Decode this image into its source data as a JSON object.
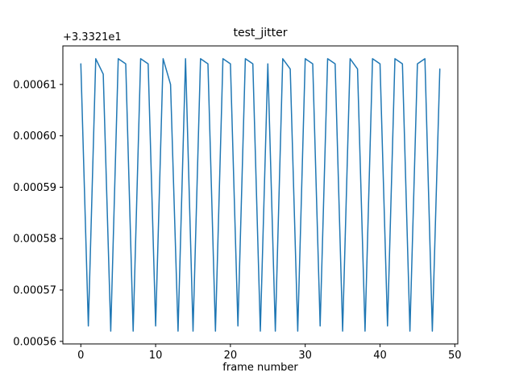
{
  "chart_data": {
    "type": "line",
    "title": "test_jitter",
    "xlabel": "frame number",
    "ylabel": "",
    "offset_text": "+3.3321e1",
    "offset_value": 33.321,
    "series_color": "#1f77b4",
    "grid": false,
    "legend": null,
    "xlim": [
      -2.4,
      50.4
    ],
    "ylim": [
      33.3215595,
      33.3216175
    ],
    "x_ticks": [
      0,
      10,
      20,
      30,
      40,
      50
    ],
    "x_tick_labels": [
      "0",
      "10",
      "20",
      "30",
      "40",
      "50"
    ],
    "y_ticks": [
      33.32156,
      33.32157,
      33.32158,
      33.32159,
      33.3216,
      33.32161
    ],
    "y_tick_labels": [
      "0.00056",
      "0.00057",
      "0.00058",
      "0.00059",
      "0.00060",
      "0.00061"
    ],
    "x": [
      0,
      1,
      2,
      3,
      4,
      5,
      6,
      7,
      8,
      9,
      10,
      11,
      12,
      13,
      14,
      15,
      16,
      17,
      18,
      19,
      20,
      21,
      22,
      23,
      24,
      25,
      26,
      27,
      28,
      29,
      30,
      31,
      32,
      33,
      34,
      35,
      36,
      37,
      38,
      39,
      40,
      41,
      42,
      43,
      44,
      45,
      46,
      47,
      48
    ],
    "values": [
      33.321614,
      33.321563,
      33.321615,
      33.321612,
      33.321562,
      33.321615,
      33.321614,
      33.321562,
      33.321615,
      33.321614,
      33.321563,
      33.321615,
      33.32161,
      33.321562,
      33.321615,
      33.321562,
      33.321615,
      33.321614,
      33.321562,
      33.321615,
      33.321614,
      33.321563,
      33.321615,
      33.321614,
      33.321562,
      33.321614,
      33.321562,
      33.321615,
      33.321613,
      33.321562,
      33.321615,
      33.321614,
      33.321563,
      33.321615,
      33.321614,
      33.321562,
      33.321615,
      33.321613,
      33.321562,
      33.321615,
      33.321614,
      33.321563,
      33.321615,
      33.321614,
      33.321562,
      33.321614,
      33.321615,
      33.321562,
      33.321613
    ]
  }
}
